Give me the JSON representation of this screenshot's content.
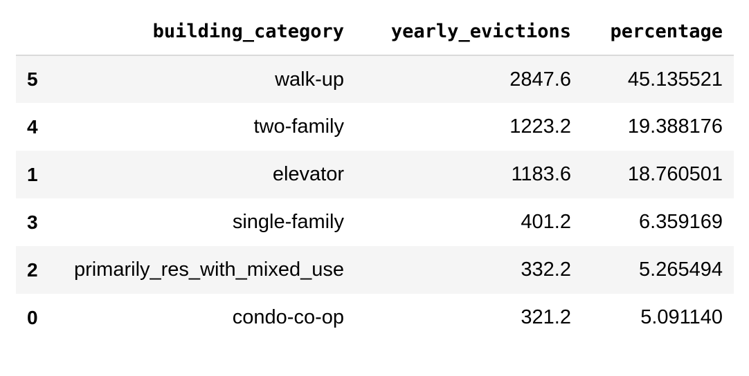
{
  "table": {
    "columns": [
      "",
      "building_category",
      "yearly_evictions",
      "percentage"
    ],
    "rows": [
      {
        "index": "5",
        "building_category": "walk-up",
        "yearly_evictions": "2847.6",
        "percentage": "45.135521"
      },
      {
        "index": "4",
        "building_category": "two-family",
        "yearly_evictions": "1223.2",
        "percentage": "19.388176"
      },
      {
        "index": "1",
        "building_category": "elevator",
        "yearly_evictions": "1183.6",
        "percentage": "18.760501"
      },
      {
        "index": "3",
        "building_category": "single-family",
        "yearly_evictions": "401.2",
        "percentage": "6.359169"
      },
      {
        "index": "2",
        "building_category": "primarily_res_with_mixed_use",
        "yearly_evictions": "332.2",
        "percentage": "5.265494"
      },
      {
        "index": "0",
        "building_category": "condo-co-op",
        "yearly_evictions": "321.2",
        "percentage": "5.091140"
      }
    ]
  }
}
